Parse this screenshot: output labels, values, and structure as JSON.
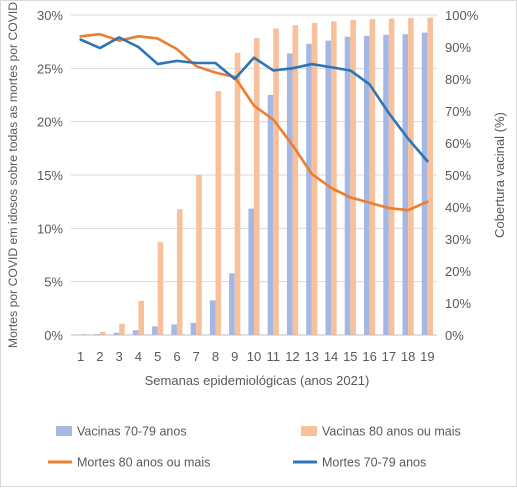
{
  "chart_data": {
    "type": "bar",
    "title": "",
    "xlabel": "Semanas epidemiológicas (anos 2021)",
    "ylabel_left": "Mortes por COVID em idosos sobre todas as mortes por COVID",
    "ylabel_right": "Cobertura vacinal (%)",
    "categories": [
      "1",
      "2",
      "3",
      "4",
      "5",
      "6",
      "7",
      "8",
      "9",
      "10",
      "11",
      "12",
      "13",
      "14",
      "15",
      "16",
      "17",
      "18",
      "19"
    ],
    "y_left_ticks": [
      "0%",
      "5%",
      "10%",
      "15%",
      "20%",
      "25%",
      "30%"
    ],
    "y_left_lim": [
      0,
      30
    ],
    "y_right_ticks": [
      "0%",
      "10%",
      "20%",
      "30%",
      "40%",
      "50%",
      "60%",
      "70%",
      "80%",
      "90%",
      "100%"
    ],
    "y_right_lim": [
      0,
      100
    ],
    "grid": true,
    "legend_position": "bottom",
    "bar_series": [
      {
        "name": "Vacinas 70-79 anos",
        "axis": "right",
        "color": "#a5b7e3",
        "values": [
          0.2,
          0.3,
          0.7,
          1.5,
          2.7,
          3.3,
          3.8,
          10.8,
          19.3,
          39.5,
          75.0,
          88.0,
          91.0,
          92.0,
          93.2,
          93.5,
          93.8,
          94.0,
          94.5
        ]
      },
      {
        "name": "Vacinas 80 anos ou mais",
        "axis": "right",
        "color": "#f8c19c",
        "values": [
          0.3,
          1.0,
          3.5,
          10.7,
          29.0,
          39.3,
          50.0,
          76.2,
          88.2,
          92.8,
          95.8,
          96.8,
          97.5,
          98.0,
          98.5,
          98.7,
          98.9,
          99.0,
          99.2
        ]
      }
    ],
    "line_series": [
      {
        "name": "Mortes 80 anos ou mais",
        "axis": "left",
        "color": "#ed7d31",
        "values": [
          28.0,
          28.2,
          27.6,
          28.0,
          27.8,
          26.8,
          25.2,
          24.6,
          24.2,
          21.5,
          20.2,
          17.8,
          15.1,
          13.8,
          12.9,
          12.4,
          11.9,
          11.7,
          12.5
        ]
      },
      {
        "name": "Mortes 70-79 anos",
        "axis": "left",
        "color": "#2e75b6",
        "values": [
          27.7,
          26.9,
          27.9,
          27.0,
          25.4,
          25.7,
          25.5,
          25.5,
          24.0,
          26.0,
          24.8,
          25.0,
          25.4,
          25.1,
          24.8,
          23.5,
          20.8,
          18.4,
          16.3
        ]
      }
    ]
  }
}
